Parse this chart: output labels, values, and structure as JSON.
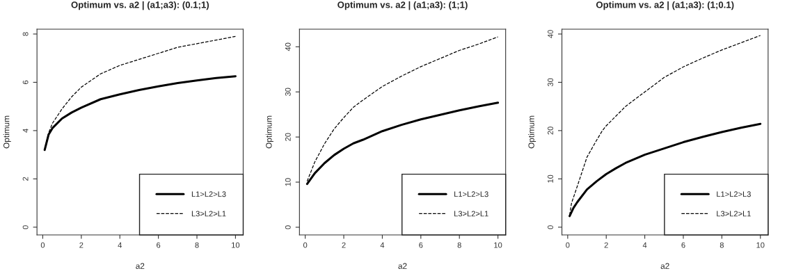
{
  "chart_data": [
    {
      "type": "line",
      "title": "Optimum vs. a2 | (a1;a3): (0.1;1)",
      "xlabel": "a2",
      "ylabel": "Optimum",
      "xlim": [
        -0.3,
        10.4
      ],
      "ylim": [
        -0.32,
        8.2
      ],
      "xticks": [
        0,
        2,
        4,
        6,
        8,
        10
      ],
      "yticks": [
        0,
        2,
        4,
        6,
        8
      ],
      "grid": false,
      "legend": "bottom right",
      "series": [
        {
          "name": "L1>L2>L3",
          "color": "#000000",
          "line_style": "solid",
          "x": [
            0.1,
            0.3,
            0.5,
            1,
            1.5,
            2,
            3,
            4,
            5,
            6,
            7,
            8,
            9,
            10
          ],
          "values": [
            3.2,
            3.83,
            4.1,
            4.5,
            4.75,
            4.95,
            5.3,
            5.5,
            5.68,
            5.83,
            5.97,
            6.08,
            6.18,
            6.25
          ]
        },
        {
          "name": "L3>L2>L1",
          "color": "#000000",
          "line_style": "dashed",
          "x": [
            0.1,
            0.3,
            0.5,
            1,
            1.5,
            2,
            3,
            4,
            5,
            6,
            7,
            8,
            9,
            10
          ],
          "values": [
            3.2,
            3.9,
            4.3,
            4.9,
            5.4,
            5.8,
            6.35,
            6.7,
            6.95,
            7.2,
            7.45,
            7.6,
            7.75,
            7.9
          ]
        }
      ]
    },
    {
      "type": "line",
      "title": "Optimum vs. a2 | (a1;a3): (1;1)",
      "xlabel": "a2",
      "ylabel": "Optimum",
      "xlim": [
        -0.3,
        10.4
      ],
      "ylim": [
        -1.7,
        43.9
      ],
      "xticks": [
        0,
        2,
        4,
        6,
        8,
        10
      ],
      "yticks": [
        0,
        10,
        20,
        30,
        40
      ],
      "grid": false,
      "legend": "bottom right",
      "series": [
        {
          "name": "L1>L2>L3",
          "color": "#000000",
          "line_style": "solid",
          "x": [
            0.1,
            0.5,
            1,
            1.5,
            2,
            2.5,
            3,
            4,
            5,
            6,
            7,
            8,
            9,
            10
          ],
          "values": [
            9.6,
            12,
            14.2,
            16,
            17.4,
            18.6,
            19.4,
            21.3,
            22.7,
            23.9,
            24.9,
            25.9,
            26.8,
            27.6
          ]
        },
        {
          "name": "L3>L2>L1",
          "color": "#000000",
          "line_style": "dashed",
          "x": [
            0.1,
            0.5,
            1,
            1.5,
            2,
            2.5,
            3,
            4,
            5,
            6,
            7,
            8,
            9,
            10
          ],
          "values": [
            10.2,
            14.5,
            18.5,
            21.8,
            24.3,
            26.6,
            28.2,
            31.2,
            33.5,
            35.6,
            37.4,
            39.2,
            40.6,
            42.2
          ]
        }
      ]
    },
    {
      "type": "line",
      "title": "Optimum vs. a2 | (a1;a3): (1;0.1)",
      "xlabel": "a2",
      "ylabel": "Optimum",
      "xlim": [
        -0.3,
        10.4
      ],
      "ylim": [
        -1.6,
        41
      ],
      "xticks": [
        0,
        2,
        4,
        6,
        8,
        10
      ],
      "yticks": [
        0,
        10,
        20,
        30,
        40
      ],
      "grid": false,
      "legend": "bottom right",
      "series": [
        {
          "name": "L1>L2>L3",
          "color": "#000000",
          "line_style": "solid",
          "x": [
            0.1,
            0.3,
            0.5,
            1,
            1.5,
            2,
            2.5,
            3,
            4,
            5,
            6,
            7,
            8,
            9,
            10
          ],
          "values": [
            2.3,
            4,
            5.2,
            7.8,
            9.5,
            11,
            12.2,
            13.3,
            15,
            16.3,
            17.6,
            18.7,
            19.7,
            20.6,
            21.4
          ]
        },
        {
          "name": "L3>L2>L1",
          "color": "#000000",
          "line_style": "dashed",
          "x": [
            0.1,
            0.2,
            0.5,
            1,
            1.5,
            1.8,
            2,
            3,
            4,
            5,
            6,
            7,
            8,
            9,
            10
          ],
          "values": [
            2.5,
            5,
            8.5,
            14.5,
            18,
            20,
            21,
            25,
            28,
            31,
            33.2,
            35,
            36.7,
            38.2,
            39.7
          ]
        }
      ]
    }
  ]
}
